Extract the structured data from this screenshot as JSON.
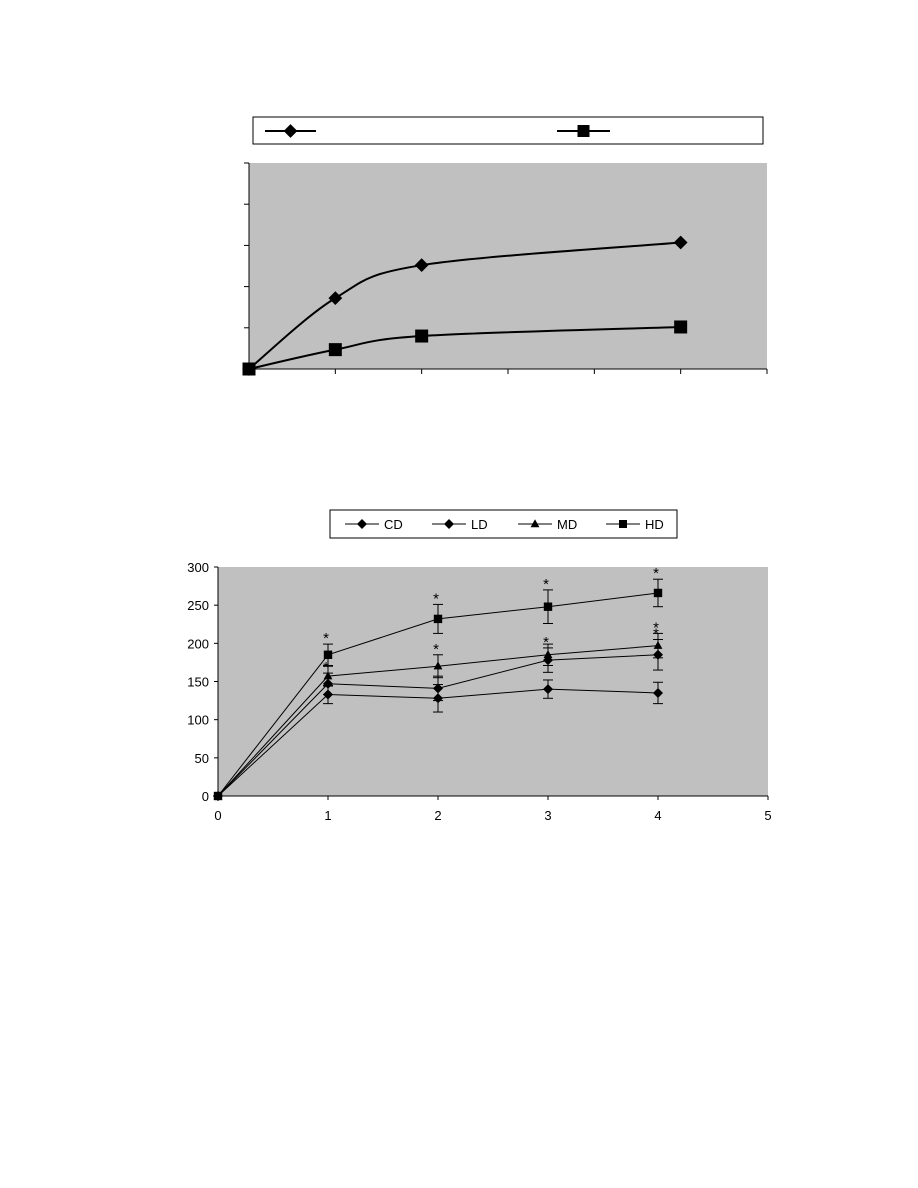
{
  "chart_data": [
    {
      "type": "line",
      "title": "",
      "xlabel": "",
      "ylabel": "",
      "smooth": true,
      "grid": false,
      "legend": "top",
      "plot_background": "#c0c0c0",
      "x_tick_count": 7,
      "y_tick_count": 6,
      "x_range": [
        0,
        6
      ],
      "y_range": [
        0,
        5
      ],
      "series": [
        {
          "x": [
            0,
            1,
            2,
            5
          ],
          "values": [
            0,
            1.72,
            2.52,
            3.07
          ],
          "marker": "diamond"
        },
        {
          "x": [
            0,
            1,
            2,
            5
          ],
          "values": [
            0,
            0.47,
            0.8,
            1.02
          ],
          "marker": "square"
        }
      ]
    },
    {
      "type": "line",
      "title": "",
      "xlabel": "",
      "ylabel": "",
      "grid": false,
      "legend": "top",
      "plot_background": "#c0c0c0",
      "x_range": [
        0,
        5
      ],
      "y_range": [
        0,
        300
      ],
      "x_ticks": [
        "0",
        "1",
        "2",
        "3",
        "4",
        "5"
      ],
      "y_ticks": [
        "0",
        "50",
        "100",
        "150",
        "200",
        "250",
        "300"
      ],
      "significance_mark": "*",
      "series": [
        {
          "name": "CD",
          "marker": "diamond",
          "x": [
            0,
            1,
            2,
            3,
            4
          ],
          "values": [
            0,
            133,
            128,
            140,
            135
          ],
          "error": [
            0,
            12,
            18,
            12,
            14
          ],
          "significant": [
            false,
            false,
            false,
            false,
            false
          ]
        },
        {
          "name": "LD",
          "marker": "diamond",
          "x": [
            0,
            1,
            2,
            3,
            4
          ],
          "values": [
            0,
            147,
            141,
            178,
            185
          ],
          "error": [
            0,
            14,
            16,
            16,
            20
          ],
          "significant": [
            false,
            true,
            false,
            true,
            true
          ]
        },
        {
          "name": "MD",
          "marker": "triangle",
          "x": [
            0,
            1,
            2,
            3,
            4
          ],
          "values": [
            0,
            157,
            170,
            185,
            197
          ],
          "error": [
            0,
            13,
            15,
            14,
            16
          ],
          "significant": [
            false,
            false,
            true,
            false,
            true
          ]
        },
        {
          "name": "HD",
          "marker": "square",
          "x": [
            0,
            1,
            2,
            3,
            4
          ],
          "values": [
            0,
            185,
            232,
            248,
            266
          ],
          "error": [
            0,
            14,
            19,
            22,
            18
          ],
          "significant": [
            false,
            true,
            true,
            true,
            true
          ]
        }
      ]
    }
  ]
}
